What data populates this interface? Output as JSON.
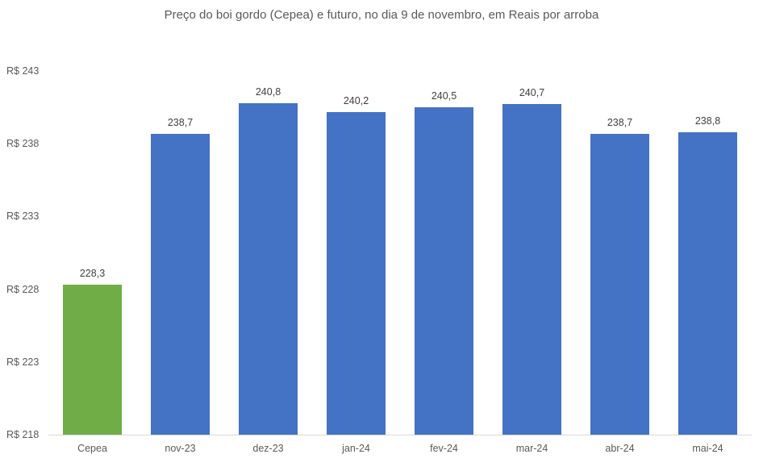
{
  "chart_data": {
    "type": "bar",
    "title": "Preço do boi gordo (Cepea) e futuro, no dia 9 de novembro, em Reais por arroba",
    "xlabel": "",
    "ylabel": "",
    "categories": [
      "Cepea",
      "nov-23",
      "dez-23",
      "jan-24",
      "fev-24",
      "mar-24",
      "abr-24",
      "mai-24"
    ],
    "values": [
      228.3,
      238.7,
      240.8,
      240.2,
      240.5,
      240.7,
      238.7,
      238.8
    ],
    "value_labels": [
      "228,3",
      "238,7",
      "240,8",
      "240,2",
      "240,5",
      "240,7",
      "238,7",
      "238,8"
    ],
    "bar_colors": [
      "#70ad47",
      "#4472c4",
      "#4472c4",
      "#4472c4",
      "#4472c4",
      "#4472c4",
      "#4472c4",
      "#4472c4"
    ],
    "ylim": [
      218,
      243
    ],
    "yticks": [
      218,
      223,
      228,
      233,
      238,
      243
    ],
    "ytick_labels": [
      "R$ 218",
      "R$ 223",
      "R$ 228",
      "R$ 233",
      "R$ 238",
      "R$ 243"
    ],
    "grid": false,
    "legend": "none"
  }
}
